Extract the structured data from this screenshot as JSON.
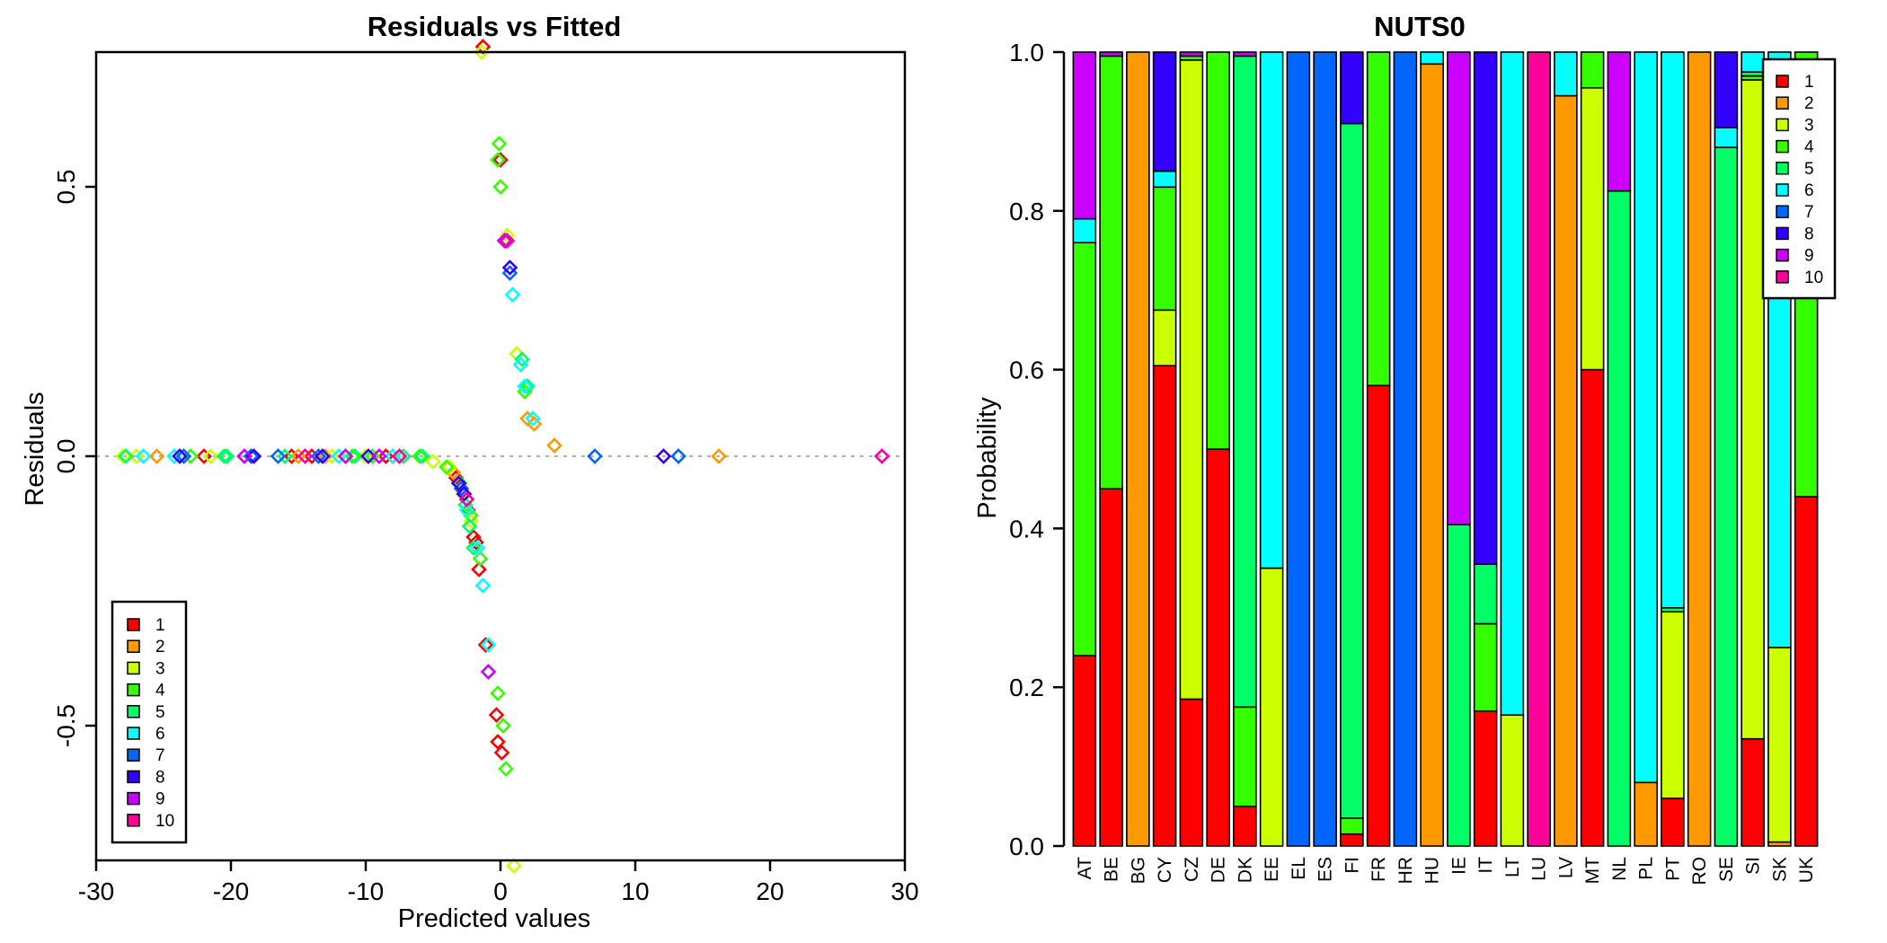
{
  "chart_data": [
    {
      "type": "scatter",
      "title": "Residuals vs Fitted",
      "xlabel": "Predicted values",
      "ylabel": "Residuals",
      "xlim": [
        -30,
        30
      ],
      "ylim": [
        -0.75,
        0.75
      ],
      "x_ticks": [
        "-30",
        "-20",
        "-10",
        "0",
        "10",
        "20",
        "30"
      ],
      "y_ticks": [
        "-0.5",
        "0.0",
        "0.5"
      ],
      "reference_line_y": 0,
      "legend": {
        "position": "bottom-left",
        "labels": [
          "1",
          "2",
          "3",
          "4",
          "5",
          "6",
          "7",
          "8",
          "9",
          "10"
        ]
      },
      "series": [
        {
          "name": "1",
          "points": [
            [
              -22,
              0
            ],
            [
              -15.5,
              0
            ],
            [
              -14,
              0
            ],
            [
              -8.5,
              0
            ],
            [
              -8,
              0
            ],
            [
              -3.3,
              -0.04
            ],
            [
              -2.4,
              -0.1
            ],
            [
              -2,
              -0.15
            ],
            [
              -1.8,
              -0.16
            ],
            [
              -1.6,
              -0.21
            ],
            [
              -1.3,
              0.76
            ],
            [
              -1.1,
              -0.35
            ],
            [
              -0.3,
              -0.48
            ],
            [
              -0.2,
              -0.53
            ],
            [
              0,
              0.55
            ],
            [
              0.1,
              -0.55
            ],
            [
              0.4,
              0.4
            ]
          ]
        },
        {
          "name": "2",
          "points": [
            [
              -25.5,
              0
            ],
            [
              -15,
              0
            ],
            [
              -13,
              0
            ],
            [
              -3.5,
              -0.03
            ],
            [
              4,
              0.02
            ],
            [
              16.2,
              0
            ],
            [
              2,
              0.07
            ],
            [
              2.5,
              0.06
            ]
          ]
        },
        {
          "name": "3",
          "points": [
            [
              -28,
              0
            ],
            [
              -27,
              0
            ],
            [
              -21.5,
              0
            ],
            [
              -12.5,
              0
            ],
            [
              -10,
              0
            ],
            [
              -5,
              -0.01
            ],
            [
              -3.8,
              -0.02
            ],
            [
              -2.8,
              -0.07
            ],
            [
              -2.2,
              -0.12
            ],
            [
              -1.4,
              0.75
            ],
            [
              1.2,
              0.19
            ],
            [
              1.5,
              0.17
            ],
            [
              1,
              -0.76
            ],
            [
              0.5,
              0.41
            ]
          ]
        },
        {
          "name": "4",
          "points": [
            [
              -23,
              0
            ],
            [
              -11,
              0
            ],
            [
              -9.5,
              0
            ],
            [
              -6,
              0
            ],
            [
              -4,
              -0.02
            ],
            [
              -3,
              -0.05
            ],
            [
              -2.2,
              -0.11
            ],
            [
              -1.5,
              -0.19
            ],
            [
              -0.1,
              0.58
            ],
            [
              -0.2,
              0.55
            ],
            [
              0,
              0.5
            ],
            [
              -0.2,
              -0.44
            ],
            [
              0.2,
              -0.5
            ],
            [
              0.4,
              -0.58
            ],
            [
              1.8,
              0.12
            ]
          ]
        },
        {
          "name": "5",
          "points": [
            [
              -27.8,
              0
            ],
            [
              -20.5,
              0
            ],
            [
              -20.3,
              0
            ],
            [
              -16,
              0
            ],
            [
              -10.8,
              0
            ],
            [
              -7.2,
              0
            ],
            [
              -5.8,
              0
            ],
            [
              -2.6,
              -0.09
            ],
            [
              -2.3,
              -0.13
            ],
            [
              -2,
              -0.17
            ],
            [
              1.6,
              0.18
            ],
            [
              2,
              0.13
            ]
          ]
        },
        {
          "name": "6",
          "points": [
            [
              -26.5,
              0
            ],
            [
              -24.2,
              0
            ],
            [
              -12,
              0
            ],
            [
              -8,
              0
            ],
            [
              -2.5,
              -0.1
            ],
            [
              -1.7,
              -0.17
            ],
            [
              -1.3,
              -0.24
            ],
            [
              -0.9,
              -0.35
            ],
            [
              0.9,
              0.3
            ],
            [
              1.5,
              0.17
            ],
            [
              1.8,
              0.13
            ],
            [
              2.4,
              0.07
            ]
          ]
        },
        {
          "name": "7",
          "points": [
            [
              -23.5,
              0
            ],
            [
              -18.5,
              0
            ],
            [
              -16.5,
              0
            ],
            [
              -13.5,
              0
            ],
            [
              -2.9,
              -0.06
            ],
            [
              0.7,
              0.34
            ],
            [
              7,
              0
            ],
            [
              13.2,
              0
            ]
          ]
        },
        {
          "name": "8",
          "points": [
            [
              -23.8,
              0
            ],
            [
              -18.3,
              0
            ],
            [
              -13.2,
              0
            ],
            [
              -9.8,
              0
            ],
            [
              -3.1,
              -0.05
            ],
            [
              -2.7,
              -0.07
            ],
            [
              0.7,
              0.35
            ],
            [
              12.1,
              0
            ]
          ]
        },
        {
          "name": "9",
          "points": [
            [
              -19,
              0
            ],
            [
              -11.5,
              0
            ],
            [
              -9,
              0
            ],
            [
              -0.9,
              -0.4
            ],
            [
              0.3,
              0.4
            ]
          ]
        },
        {
          "name": "10",
          "points": [
            [
              -14.5,
              0
            ],
            [
              -7.5,
              0
            ],
            [
              -2.5,
              -0.08
            ],
            [
              0.5,
              0.4
            ],
            [
              28.3,
              0
            ]
          ]
        }
      ]
    },
    {
      "type": "bar",
      "stacked": true,
      "title": "NUTS0",
      "ylabel": "Probability",
      "xlabel": "",
      "ylim": [
        0,
        1
      ],
      "y_ticks": [
        "0.0",
        "0.2",
        "0.4",
        "0.6",
        "0.8",
        "1.0"
      ],
      "legend": {
        "position": "top-right",
        "labels": [
          "1",
          "2",
          "3",
          "4",
          "5",
          "6",
          "7",
          "8",
          "9",
          "10"
        ]
      },
      "categories": [
        "AT",
        "BE",
        "BG",
        "CY",
        "CZ",
        "DE",
        "DK",
        "EE",
        "EL",
        "ES",
        "FI",
        "FR",
        "HR",
        "HU",
        "IE",
        "IT",
        "LT",
        "LU",
        "LV",
        "MT",
        "NL",
        "PL",
        "PT",
        "RO",
        "SE",
        "SI",
        "SK",
        "UK"
      ],
      "series": [
        {
          "name": "1",
          "values": [
            0.24,
            0.45,
            0,
            0.605,
            0.185,
            0.5,
            0.05,
            0,
            0,
            0,
            0.015,
            0.58,
            0,
            0,
            0,
            0.17,
            0,
            0,
            0,
            0.6,
            0,
            0,
            0.06,
            0,
            0,
            0.135,
            0,
            0.44
          ]
        },
        {
          "name": "2",
          "values": [
            0,
            0,
            1.0,
            0,
            0,
            0,
            0,
            0,
            0,
            0,
            0,
            0,
            0,
            0.985,
            0,
            0,
            0,
            0,
            0.945,
            0,
            0,
            0.08,
            0,
            1.0,
            0,
            0,
            0.005,
            0
          ]
        },
        {
          "name": "3",
          "values": [
            0,
            0,
            0,
            0.07,
            0.805,
            0,
            0,
            0.35,
            0,
            0,
            0,
            0,
            0,
            0,
            0,
            0,
            0.165,
            0,
            0,
            0.355,
            0,
            0,
            0.235,
            0,
            0,
            0.83,
            0.245,
            0
          ]
        },
        {
          "name": "4",
          "values": [
            0.52,
            0.545,
            0,
            0.155,
            0.005,
            0.5,
            0.125,
            0,
            0,
            0,
            0.02,
            0.42,
            0,
            0,
            0,
            0.11,
            0,
            0,
            0,
            0.045,
            0,
            0,
            0,
            0,
            0,
            0.005,
            0,
            0.56
          ]
        },
        {
          "name": "5",
          "values": [
            0,
            0,
            0,
            0,
            0,
            0,
            0.82,
            0,
            0,
            0,
            0.875,
            0,
            0,
            0,
            0.405,
            0.075,
            0,
            0,
            0,
            0,
            0.825,
            0,
            0.005,
            0,
            0.88,
            0.005,
            0,
            0
          ]
        },
        {
          "name": "6",
          "values": [
            0.03,
            0,
            0,
            0.02,
            0,
            0,
            0,
            0.65,
            0,
            0,
            0,
            0,
            0,
            0.015,
            0,
            0,
            0.835,
            0,
            0.055,
            0,
            0,
            0.92,
            0.7,
            0,
            0.025,
            0.025,
            0.75,
            0
          ]
        },
        {
          "name": "7",
          "values": [
            0,
            0,
            0,
            0,
            0,
            0,
            0,
            0,
            1.0,
            1.0,
            0,
            0,
            1.0,
            0,
            0,
            0,
            0,
            0,
            0,
            0,
            0,
            0,
            0,
            0,
            0,
            0,
            0,
            0
          ]
        },
        {
          "name": "8",
          "values": [
            0,
            0,
            0,
            0.15,
            0,
            0,
            0,
            0,
            0,
            0,
            0.09,
            0,
            0,
            0,
            0,
            0.645,
            0,
            0,
            0,
            0,
            0,
            0,
            0,
            0,
            0.095,
            0,
            0,
            0
          ]
        },
        {
          "name": "9",
          "values": [
            0.21,
            0.005,
            0,
            0,
            0.005,
            0,
            0.005,
            0,
            0,
            0,
            0,
            0,
            0,
            0,
            0.595,
            0,
            0,
            0,
            0,
            0,
            0.175,
            0,
            0,
            0,
            0,
            0,
            0,
            0
          ]
        },
        {
          "name": "10",
          "values": [
            0,
            0,
            0,
            0,
            0,
            0,
            0,
            0,
            0,
            0,
            0,
            0,
            0,
            0,
            0,
            0,
            0,
            1.0,
            0,
            0,
            0,
            0,
            0,
            0,
            0,
            0,
            0,
            0
          ]
        }
      ]
    }
  ],
  "palette": [
    "#ff0000",
    "#ff9900",
    "#ccff00",
    "#33ff00",
    "#00ff66",
    "#00ffff",
    "#0066ff",
    "#3300ff",
    "#cc00ff",
    "#ff0099"
  ]
}
